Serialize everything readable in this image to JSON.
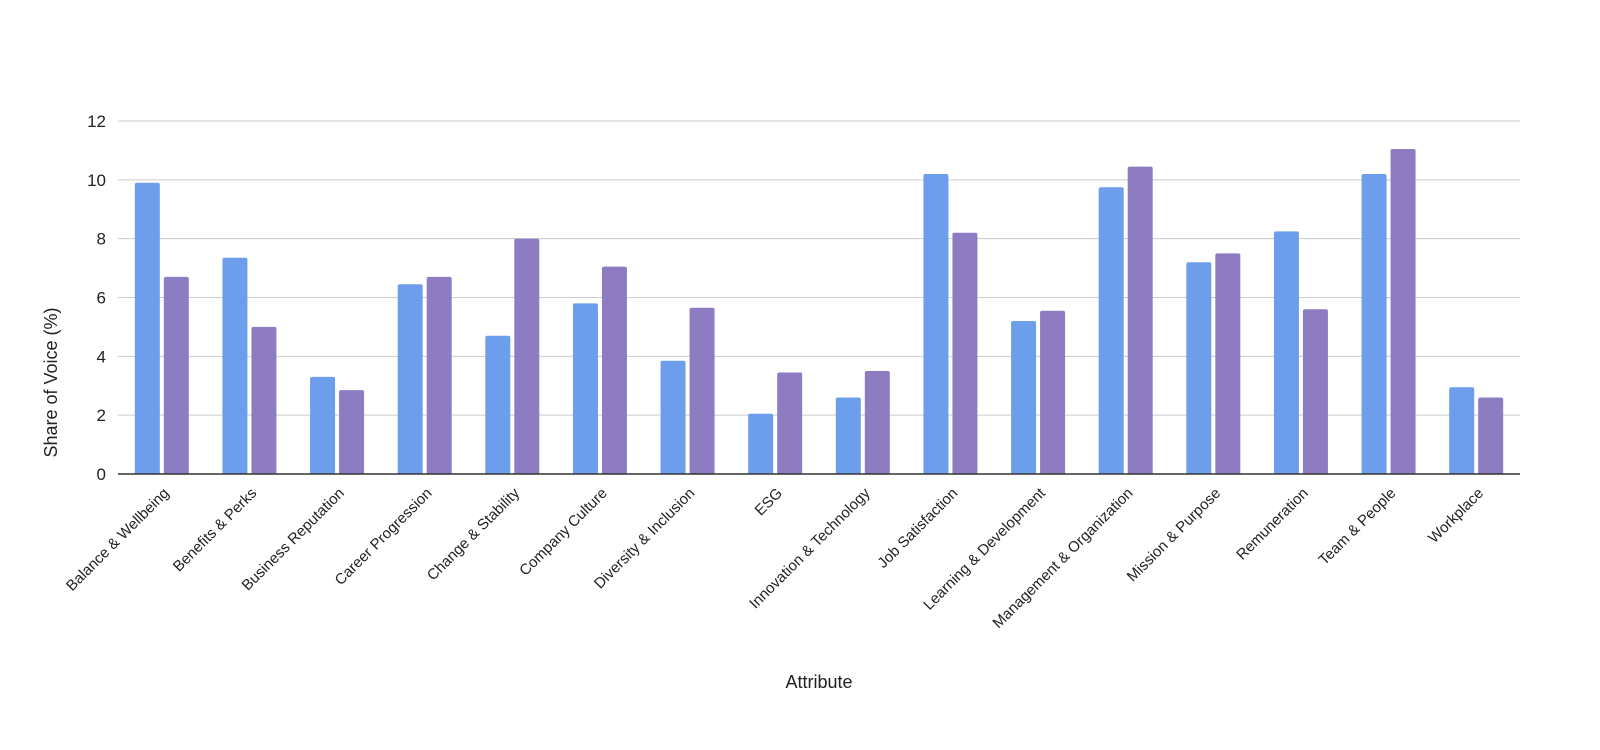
{
  "chart_data": {
    "type": "bar",
    "title": "",
    "xlabel": "Attribute",
    "ylabel": "Share of Voice (%)",
    "ylim": [
      0,
      12
    ],
    "yticks": [
      "0",
      "2",
      "4",
      "6",
      "8",
      "10",
      "12"
    ],
    "grid": true,
    "legend": "none",
    "categories": [
      "Balance & Wellbeing",
      "Benefits & Perks",
      "Business Reputation",
      "Career Progression",
      "Change & Stability",
      "Company Culture",
      "Diversity & Inclusion",
      "ESG",
      "Innovation & Technology",
      "Job Satisfaction",
      "Learning & Development",
      "Management & Organization",
      "Mission & Purpose",
      "Remuneration",
      "Team & People",
      "Workplace"
    ],
    "series": [
      {
        "color": "#6d9eeb",
        "values": [
          9.9,
          7.35,
          3.3,
          6.45,
          4.7,
          5.8,
          3.85,
          2.05,
          2.6,
          10.2,
          5.2,
          9.75,
          7.2,
          8.25,
          10.2,
          2.95
        ]
      },
      {
        "color": "#8e7cc3",
        "values": [
          6.7,
          5.0,
          2.85,
          6.7,
          8.0,
          7.05,
          5.65,
          3.45,
          3.5,
          8.2,
          5.55,
          10.45,
          7.5,
          5.6,
          11.05,
          2.6
        ]
      }
    ]
  }
}
